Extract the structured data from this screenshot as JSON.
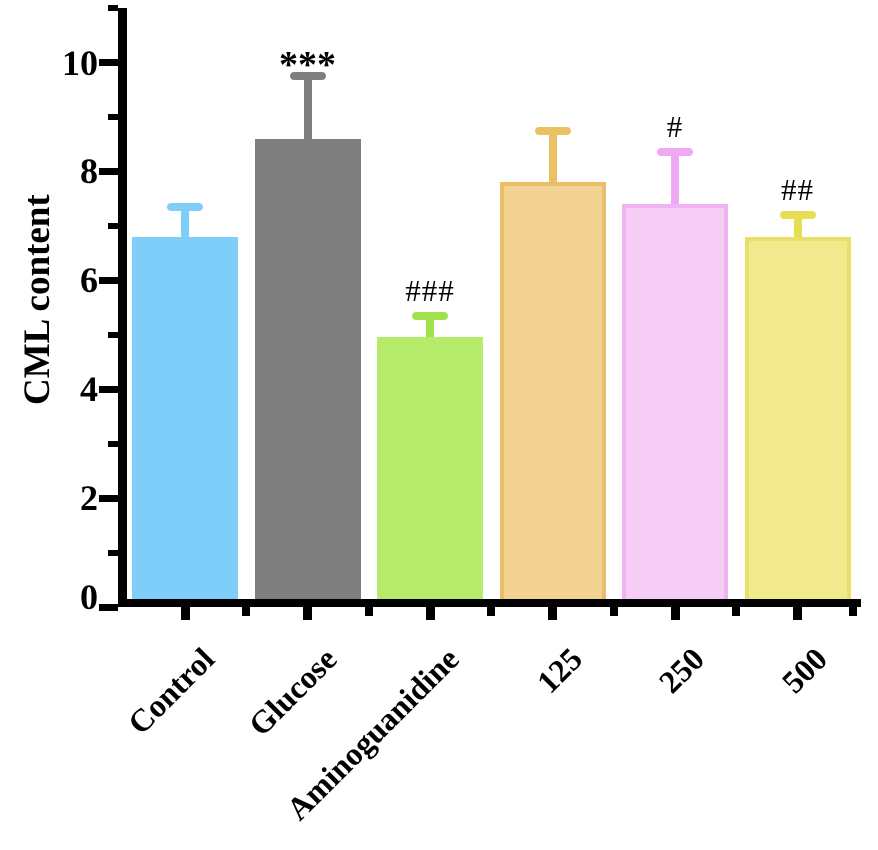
{
  "chart_data": {
    "type": "bar",
    "title": "",
    "ylabel": "CML content",
    "xlabel": "",
    "ylim": [
      0,
      10
    ],
    "yticks_major": [
      0,
      2,
      4,
      6,
      8,
      10
    ],
    "yticks_minor": [
      1,
      3,
      5,
      7,
      9,
      11
    ],
    "grid": false,
    "legend": "none",
    "background_color": "#FFFFFF",
    "axis_color": "#000000",
    "categories": [
      "Control",
      "Glucose",
      "Aminoguanidine",
      "125",
      "250",
      "500"
    ],
    "bars": [
      {
        "label": "Control",
        "value": 6.8,
        "error": 0.55,
        "annotation": "",
        "fill": "#7FCEFA",
        "border": "#7FCEFA",
        "error_color": "#7FCEFA"
      },
      {
        "label": "Glucose",
        "value": 8.6,
        "error": 1.15,
        "annotation": "***",
        "fill": "#7F7F7F",
        "border": "#7F7F7F",
        "error_color": "#7F7F7F"
      },
      {
        "label": "Aminoguanidine",
        "value": 4.95,
        "error": 0.4,
        "annotation": "###",
        "fill": "#B6EB6C",
        "border": "#B6EB6C",
        "error_color": "#9FE24E"
      },
      {
        "label": "125",
        "value": 7.8,
        "error": 0.95,
        "annotation": "",
        "fill": "#F3D394",
        "border": "#EBBD68",
        "error_color": "#ECC163"
      },
      {
        "label": "250",
        "value": 7.4,
        "error": 0.95,
        "annotation": "#",
        "fill": "#F5CDF7",
        "border": "#EFB3F2",
        "error_color": "#EFA9F3"
      },
      {
        "label": "500",
        "value": 6.8,
        "error": 0.4,
        "annotation": "##",
        "fill": "#F0EA8D",
        "border": "#E8E167",
        "error_color": "#E7DF52"
      }
    ]
  }
}
